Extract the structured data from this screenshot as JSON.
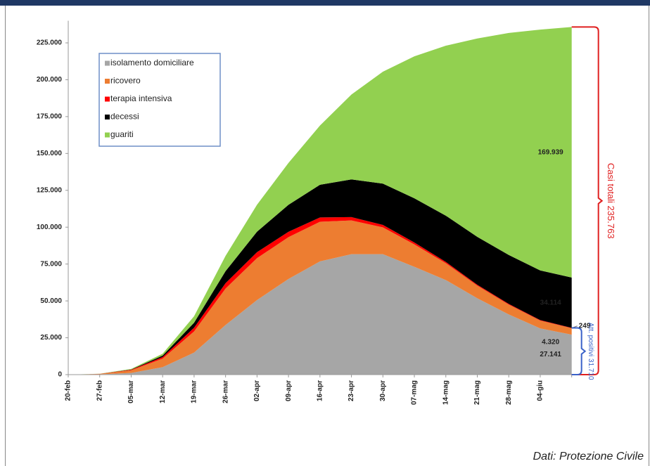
{
  "chart_data": {
    "type": "stacked-area",
    "categories": [
      "20-feb",
      "27-feb",
      "05-mar",
      "12-mar",
      "19-mar",
      "26-mar",
      "02-apr",
      "09-apr",
      "16-apr",
      "23-apr",
      "30-apr",
      "07-mag",
      "14-mag",
      "21-mag",
      "28-mag",
      "04-giu",
      null
    ],
    "series": [
      {
        "name": "isolamento domiciliare",
        "color": "#a6a6a6",
        "values": [
          0,
          231,
          1155,
          5036,
          14935,
          33648,
          50593,
          64873,
          76778,
          81710,
          81708,
          73139,
          64132,
          51752,
          40817,
          31337,
          27141
        ],
        "value_labels": [
          null,
          null,
          null,
          null,
          null,
          null,
          null,
          null,
          null,
          null,
          null,
          null,
          null,
          null,
          null,
          null,
          "27.141"
        ]
      },
      {
        "name": "ricovero",
        "color": "#ed7d31",
        "values": [
          0,
          248,
          1790,
          5838,
          14363,
          24753,
          28403,
          28399,
          26893,
          22871,
          18149,
          15174,
          11453,
          8613,
          6680,
          5301,
          4320
        ],
        "value_labels": [
          null,
          null,
          null,
          null,
          null,
          null,
          null,
          null,
          null,
          null,
          null,
          null,
          null,
          null,
          null,
          null,
          "4.320"
        ]
      },
      {
        "name": "terapia intensiva",
        "color": "#ff0000",
        "values": [
          0,
          56,
          351,
          1028,
          2498,
          3612,
          4053,
          3605,
          2936,
          2267,
          1694,
          1311,
          855,
          595,
          489,
          338,
          249
        ]
      },
      {
        "name": "decessi",
        "color": "#000000",
        "values": [
          0,
          17,
          148,
          1016,
          3405,
          8165,
          13915,
          18279,
          22170,
          25549,
          27967,
          29958,
          31368,
          32486,
          33142,
          33689,
          34114
        ],
        "value_labels": [
          null,
          null,
          null,
          null,
          null,
          null,
          null,
          null,
          null,
          null,
          null,
          null,
          null,
          null,
          null,
          null,
          "34.114"
        ]
      },
      {
        "name": "guariti",
        "color": "#92d050",
        "values": [
          0,
          45,
          414,
          1258,
          4440,
          10361,
          18278,
          28470,
          40164,
          57576,
          75945,
          96276,
          115288,
          134560,
          150604,
          163348,
          169939
        ],
        "value_labels": [
          null,
          null,
          null,
          null,
          null,
          null,
          null,
          null,
          null,
          null,
          null,
          null,
          null,
          null,
          null,
          null,
          "169.939"
        ]
      }
    ],
    "ylim": [
      0,
      240000
    ],
    "yticks": [
      0,
      {
        "value": 25000,
        "label": "25.000"
      },
      {
        "value": 50000,
        "label": "50.000"
      },
      {
        "value": 75000,
        "label": "75.000"
      },
      {
        "value": 100000,
        "label": "100.000"
      },
      {
        "value": 125000,
        "label": "125.000"
      },
      {
        "value": 150000,
        "label": "150.000"
      },
      {
        "value": 175000,
        "label": "175.000"
      },
      {
        "value": 200000,
        "label": "200.000"
      },
      {
        "value": 225000,
        "label": "225.000"
      }
    ],
    "annotations": [
      {
        "text": "Casi totali 235.763",
        "color": "#e02020"
      },
      {
        "text": "Att. positivi 31.710",
        "color": "#3a62c9"
      }
    ],
    "source": "Dati: Protezione Civile"
  }
}
